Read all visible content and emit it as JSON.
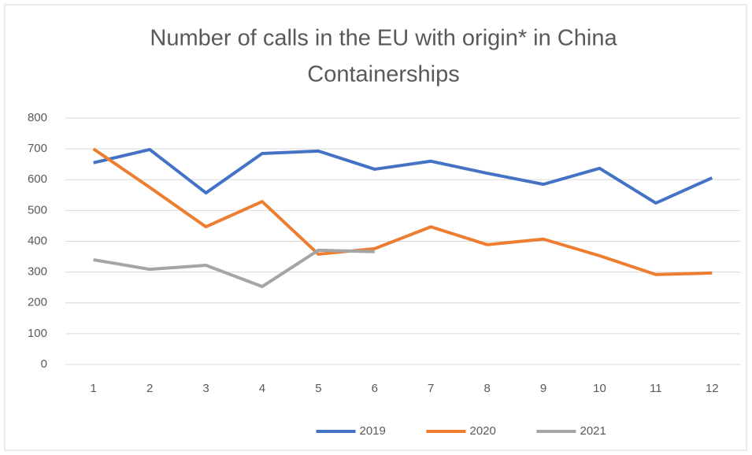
{
  "chart_data": {
    "type": "line",
    "title": "Number of calls in the EU with origin* in China",
    "subtitle": "Containerships",
    "categories": [
      "1",
      "2",
      "3",
      "4",
      "5",
      "6",
      "7",
      "8",
      "9",
      "10",
      "11",
      "12"
    ],
    "series": [
      {
        "name": "2019",
        "color": "#4472c4",
        "values": [
          655,
          698,
          557,
          685,
          693,
          634,
          660,
          621,
          585,
          637,
          524,
          606
        ]
      },
      {
        "name": "2020",
        "color": "#ed7d31",
        "values": [
          700,
          575,
          447,
          529,
          358,
          376,
          447,
          389,
          407,
          353,
          292,
          297
        ]
      },
      {
        "name": "2021",
        "color": "#a5a5a5",
        "values": [
          340,
          309,
          322,
          253,
          371,
          366,
          null,
          null,
          null,
          null,
          null,
          null
        ]
      }
    ],
    "ylim": [
      0,
      800
    ],
    "yticks": [
      0,
      100,
      200,
      300,
      400,
      500,
      600,
      700,
      800
    ],
    "grid": true,
    "legend": "bottom"
  }
}
